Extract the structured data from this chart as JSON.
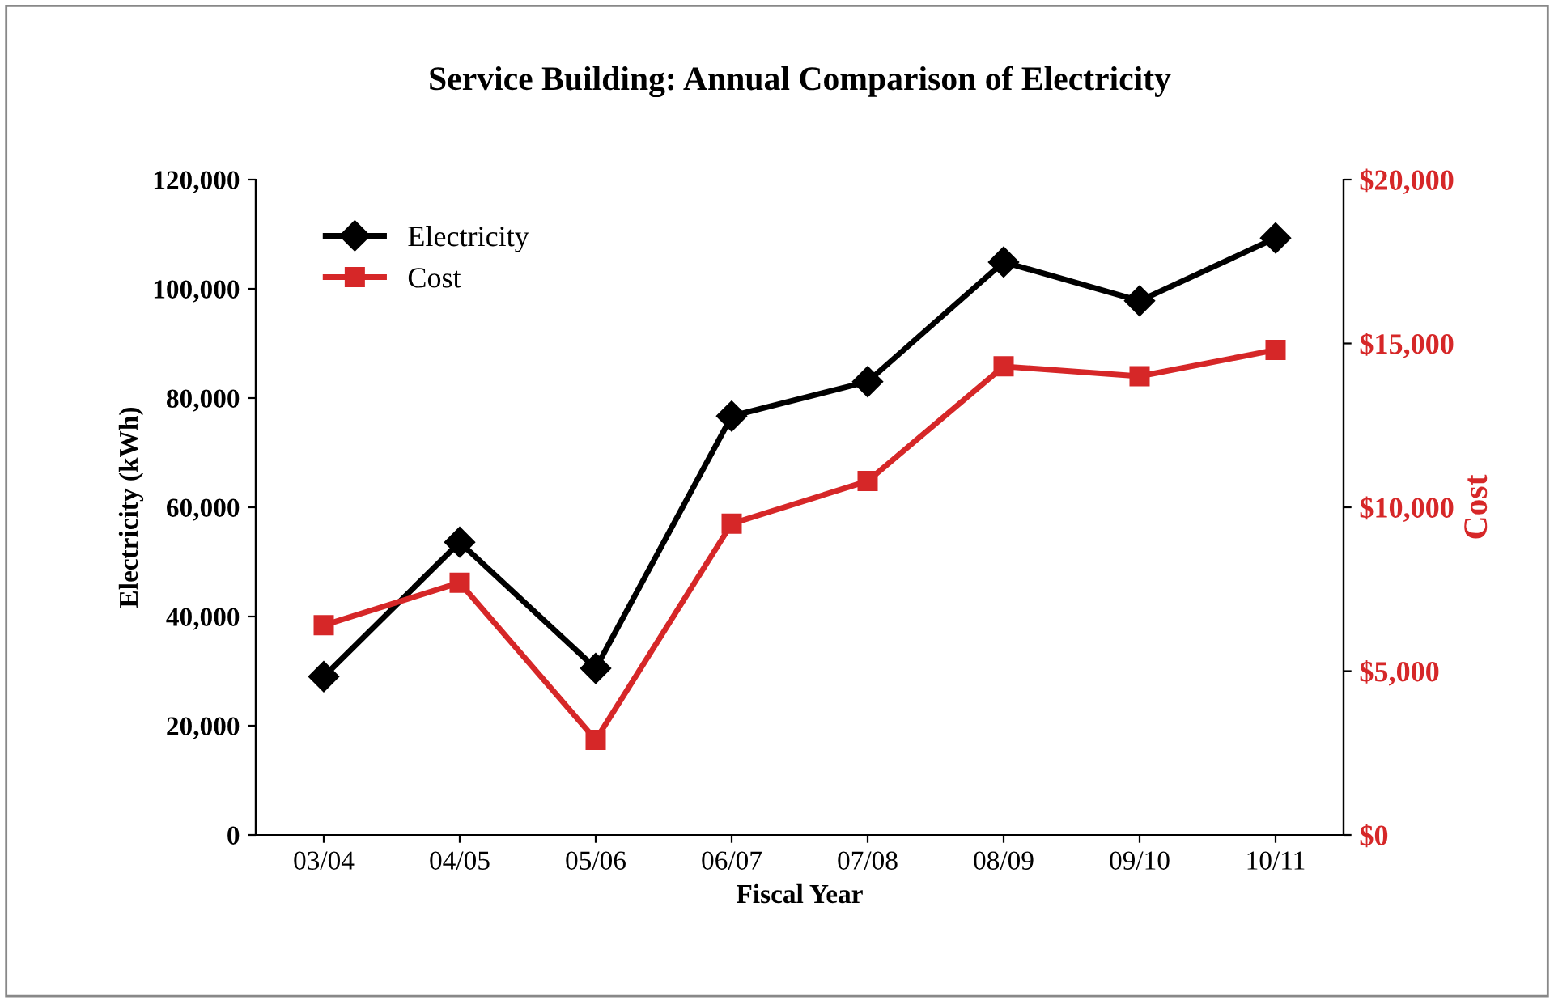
{
  "chart_data": {
    "type": "line",
    "title": "Service Building: Annual Comparison of Electricity",
    "xlabel": "Fiscal Year",
    "ylabel": "Electricity (kWh)",
    "y2label": "Cost",
    "categories": [
      "03/04",
      "04/05",
      "05/06",
      "06/07",
      "07/08",
      "08/09",
      "09/10",
      "10/11"
    ],
    "series": [
      {
        "name": "Electricity",
        "color": "#000000",
        "marker": "diamond",
        "values": [
          29000,
          53600,
          30500,
          76700,
          83000,
          104900,
          97800,
          109300
        ]
      },
      {
        "name": "Cost",
        "color": "#d62728",
        "marker": "square",
        "axis": "y2",
        "values": [
          6400,
          7700,
          2900,
          9500,
          10800,
          14300,
          14000,
          14800
        ]
      }
    ],
    "ylim": [
      0,
      120000
    ],
    "yticks": [
      {
        "value": 0,
        "label": "0"
      },
      {
        "value": 20000,
        "label": "20,000"
      },
      {
        "value": 40000,
        "label": "40,000"
      },
      {
        "value": 60000,
        "label": "60,000"
      },
      {
        "value": 80000,
        "label": "80,000"
      },
      {
        "value": 100000,
        "label": "100,000"
      },
      {
        "value": 120000,
        "label": "120,000"
      }
    ],
    "y2lim": [
      0,
      20000
    ],
    "y2ticks": [
      {
        "value": 0,
        "label": "$0"
      },
      {
        "value": 5000,
        "label": "$5,000"
      },
      {
        "value": 10000,
        "label": "$10,000"
      },
      {
        "value": 15000,
        "label": "$15,000"
      },
      {
        "value": 20000,
        "label": "$20,000"
      }
    ],
    "grid": false,
    "legend": "top left",
    "line_style": "solid"
  }
}
